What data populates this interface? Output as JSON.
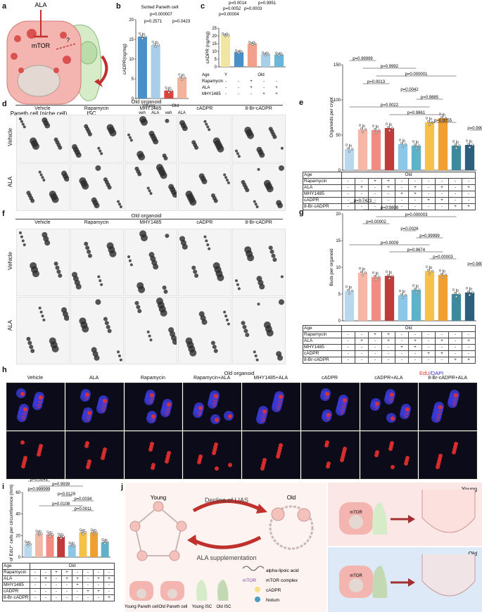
{
  "panels": {
    "a": {
      "label": "a",
      "ala": "ALA",
      "mtor": "mTOR",
      "question": "?",
      "paneth": "Paneth cell (niche cell)",
      "isc": "ISC"
    },
    "b": {
      "label": "b",
      "title": "Sorted Paneth cell",
      "ylabel": "cADPR(ng/mg)",
      "pvalues": [
        "p=0.000007",
        "p=0.2571",
        "p=0.0423"
      ],
      "groups": [
        "Young",
        "Old"
      ],
      "treat": [
        "veh",
        "ALA",
        "veh",
        "ALA"
      ]
    },
    "c": {
      "label": "c",
      "ylabel": "cADPR (ng/mg)",
      "pvalues": [
        "p=0.0014",
        "p=0.9951",
        "p=0.0052",
        "p=0.0003",
        "p=0.00004"
      ],
      "rows": [
        {
          "name": "Age",
          "vals": [
            "Y",
            "Old"
          ]
        },
        {
          "name": "Rapamycin",
          "vals": [
            "-",
            "-",
            "+",
            "-",
            "-"
          ]
        },
        {
          "name": "ALA",
          "vals": [
            "-",
            "-",
            "+",
            "-",
            "+"
          ]
        },
        {
          "name": "MHY1485",
          "vals": [
            "-",
            "-",
            "-",
            "+",
            "+"
          ]
        }
      ]
    },
    "d": {
      "label": "d",
      "header": "Old organoid",
      "columns": [
        "Vehicle",
        "Rapamycin",
        "MHY1485",
        "cADPR",
        "8-Br-cADPR"
      ],
      "rows": [
        "Vehicle",
        "ALA"
      ]
    },
    "e": {
      "label": "e",
      "ylabel": "Organoids per crypt",
      "pvalues": [
        "p=0.99999",
        "p=0.9992",
        "p=0.000001",
        "p=0.0013",
        "p=0.0042",
        "p=0.9885",
        "p=0.0022",
        "p=0.9861",
        "p=0.0055",
        "p=0.9999"
      ],
      "table": {
        "age": "Age",
        "old": "Old",
        "rows": [
          {
            "name": "Rapamycin",
            "vals": [
              "-",
              "-",
              "+",
              "+",
              "-",
              "-",
              "-",
              "-",
              "-",
              "-"
            ]
          },
          {
            "name": "ALA",
            "vals": [
              "-",
              "+",
              "-",
              "+",
              "-",
              "+",
              "-",
              "+",
              "-",
              "+"
            ]
          },
          {
            "name": "MHY1485",
            "vals": [
              "-",
              "-",
              "-",
              "-",
              "+",
              "+",
              "-",
              "-",
              "-",
              "-"
            ]
          },
          {
            "name": "cADPR",
            "vals": [
              "-",
              "-",
              "-",
              "-",
              "-",
              "-",
              "+",
              "+",
              "-",
              "-"
            ]
          },
          {
            "name": "8-Br-cADPR",
            "vals": [
              "-",
              "-",
              "-",
              "-",
              "-",
              "-",
              "-",
              "-",
              "+",
              "+"
            ]
          }
        ]
      }
    },
    "f": {
      "label": "f",
      "header": "Old organoid",
      "columns": [
        "Vehicle",
        "Rapamycin",
        "MHY1485",
        "cADPR",
        "8-Br-cADPR"
      ],
      "rows": [
        "Vehicle",
        "ALA"
      ]
    },
    "g": {
      "label": "g",
      "ylabel": "Buds per organoid",
      "pvalues": [
        "p=0.7423",
        "p=0.9808",
        "p=0.000003",
        "p=0.00002",
        "p=0.0026",
        "p=0.99999",
        "p=0.0009",
        "p=0.9674",
        "p=0.00003",
        "p=0.9808"
      ],
      "table": {
        "age": "Age",
        "old": "Old",
        "rows": [
          {
            "name": "Rapamycin",
            "vals": [
              "-",
              "-",
              "+",
              "+",
              "-",
              "-",
              "-",
              "-",
              "-",
              "-"
            ]
          },
          {
            "name": "ALA",
            "vals": [
              "-",
              "+",
              "-",
              "+",
              "-",
              "+",
              "-",
              "+",
              "-",
              "+"
            ]
          },
          {
            "name": "MHY1485",
            "vals": [
              "-",
              "-",
              "-",
              "-",
              "+",
              "+",
              "-",
              "-",
              "-",
              "-"
            ]
          },
          {
            "name": "cADPR",
            "vals": [
              "-",
              "-",
              "-",
              "-",
              "-",
              "-",
              "+",
              "+",
              "-",
              "-"
            ]
          },
          {
            "name": "8-Br-cADPR",
            "vals": [
              "-",
              "-",
              "-",
              "-",
              "-",
              "-",
              "-",
              "-",
              "+",
              "+"
            ]
          }
        ]
      }
    },
    "h": {
      "label": "h",
      "header": "Old organoid",
      "legend_edu": "EdU",
      "legend_dapi": "/DAPI",
      "columns": [
        "Vehicle",
        "ALA",
        "Rapamycin",
        "Rapamycin+ALA",
        "MHY1485+ALA",
        "cADPR",
        "cADPR+ALA",
        "8-Br-cADPR+ALA"
      ]
    },
    "i": {
      "label": "i",
      "ylabel": "# of EdU⁺ cells per circumference (mm)",
      "pvalues": [
        "p=0.0241",
        "p=0.9939",
        "p=0.999999",
        "p=0.0129",
        "p=0.0034",
        "p=0.0108",
        "p=0.0011"
      ],
      "table": {
        "age": "Age",
        "old": "Old",
        "rows": [
          {
            "name": "Rapamycin",
            "vals": [
              "-",
              "-",
              "+",
              "+",
              "-",
              "-",
              "-",
              "-"
            ]
          },
          {
            "name": "ALA",
            "vals": [
              "-",
              "+",
              "-",
              "+",
              "+",
              "-",
              "+",
              "+"
            ]
          },
          {
            "name": "MHY1485",
            "vals": [
              "-",
              "-",
              "-",
              "-",
              "+",
              "-",
              "-",
              "-"
            ]
          },
          {
            "name": "cADPR",
            "vals": [
              "-",
              "-",
              "-",
              "-",
              "-",
              "+",
              "+",
              "-"
            ]
          },
          {
            "name": "8-Br-cADPR",
            "vals": [
              "-",
              "-",
              "-",
              "-",
              "-",
              "-",
              "-",
              "+"
            ]
          }
        ]
      }
    },
    "j": {
      "label": "j",
      "young": "Young",
      "old": "Old",
      "decline": "Decline of LIAS",
      "supplement": "ALA supplementation",
      "legend": [
        "alpha-lipoic acid",
        "mTOR complex",
        "cADPR",
        "Notum"
      ],
      "mtor_tag": "mTOR",
      "cells": [
        "Young Paneth cell",
        "Old Paneth cell",
        "Young ISC",
        "Old ISC"
      ],
      "right_young": "Young",
      "right_old": "Old"
    }
  },
  "chart_data": [
    {
      "type": "bar",
      "panel": "b",
      "title": "Sorted Paneth cell",
      "ylabel": "cADPR(ng/mg)",
      "ylim": [
        0,
        20
      ],
      "categories": [
        "Young veh",
        "Young ALA",
        "Old veh",
        "Old ALA"
      ],
      "values": [
        15.7,
        13.6,
        2.0,
        5.3
      ],
      "colors": [
        "#4a90c8",
        "#a9cfe8",
        "#d9443e",
        "#f3b39a"
      ]
    },
    {
      "type": "bar",
      "panel": "c",
      "ylabel": "cADPR (ng/mg)",
      "ylim": [
        0,
        25
      ],
      "categories": [
        "Y",
        "Old",
        "Old+Rapamycin+ALA",
        "Old+MHY1485",
        "Old+MHY1485+ALA"
      ],
      "values": [
        20.5,
        9.5,
        15.0,
        8.2,
        8.0
      ],
      "colors": [
        "#f0e6a0",
        "#4a90c8",
        "#f3a08a",
        "#a9cfe8",
        "#6bb6d8"
      ]
    },
    {
      "type": "bar",
      "panel": "e",
      "ylabel": "Organoids per crypt",
      "ylim": [
        0,
        150
      ],
      "values": [
        30,
        58,
        57,
        60,
        37,
        35,
        68,
        74,
        35,
        36
      ],
      "colors": [
        "#b9d8ee",
        "#f6b7a6",
        "#f28b82",
        "#c23b3b",
        "#8bc7e6",
        "#5fb0c8",
        "#f7c04a",
        "#f0a030",
        "#3d8aa0",
        "#2c5f7c"
      ]
    },
    {
      "type": "bar",
      "panel": "g",
      "ylabel": "Buds per organoid",
      "ylim": [
        0,
        20
      ],
      "values": [
        5.6,
        9.0,
        8.2,
        8.4,
        4.8,
        5.8,
        9.3,
        8.6,
        5.0,
        5.3
      ],
      "colors": [
        "#b9d8ee",
        "#f6b7a6",
        "#f28b82",
        "#c23b3b",
        "#8bc7e6",
        "#5fb0c8",
        "#f7c04a",
        "#f0a030",
        "#3d8aa0",
        "#2c5f7c"
      ]
    },
    {
      "type": "bar",
      "panel": "i",
      "ylabel": "# of EdU⁺ cells per circumference (mm)",
      "ylim": [
        0,
        60
      ],
      "values": [
        12,
        22,
        21,
        19,
        11,
        23,
        23,
        14
      ],
      "colors": [
        "#b9d8ee",
        "#f6b7a6",
        "#f28b82",
        "#c23b3b",
        "#8bc7e6",
        "#f7c04a",
        "#f0a030",
        "#5fb0c8"
      ]
    }
  ]
}
